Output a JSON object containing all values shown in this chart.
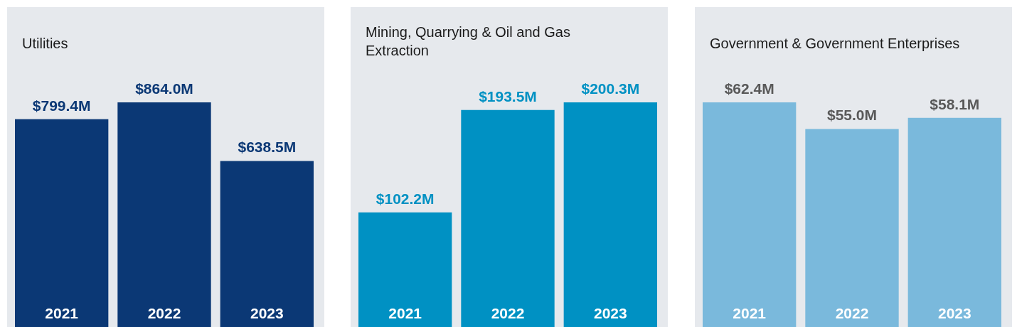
{
  "chart_data": [
    {
      "type": "bar",
      "title": "Utilities",
      "categories": [
        "2021",
        "2022",
        "2023"
      ],
      "values": [
        799.4,
        864.0,
        638.5
      ],
      "color": "#0b3875",
      "value_labels": [
        "$799.4M",
        "$864.0M",
        "$638.5M"
      ]
    },
    {
      "type": "bar",
      "title": "Mining, Quarrying & Oil and Gas Extraction",
      "categories": [
        "2021",
        "2022",
        "2023"
      ],
      "values": [
        102.2,
        193.5,
        200.3
      ],
      "color": "#0091c3",
      "value_labels": [
        "$102.2M",
        "$193.5M",
        "$200.3M"
      ]
    },
    {
      "type": "bar",
      "title": "Government & Government Enterprises",
      "categories": [
        "2021",
        "2022",
        "2023"
      ],
      "values": [
        62.4,
        55.0,
        58.1
      ],
      "color": "#7ab9dc",
      "value_labels": [
        "$62.4M",
        "$55.0M",
        "$58.1M"
      ]
    }
  ]
}
